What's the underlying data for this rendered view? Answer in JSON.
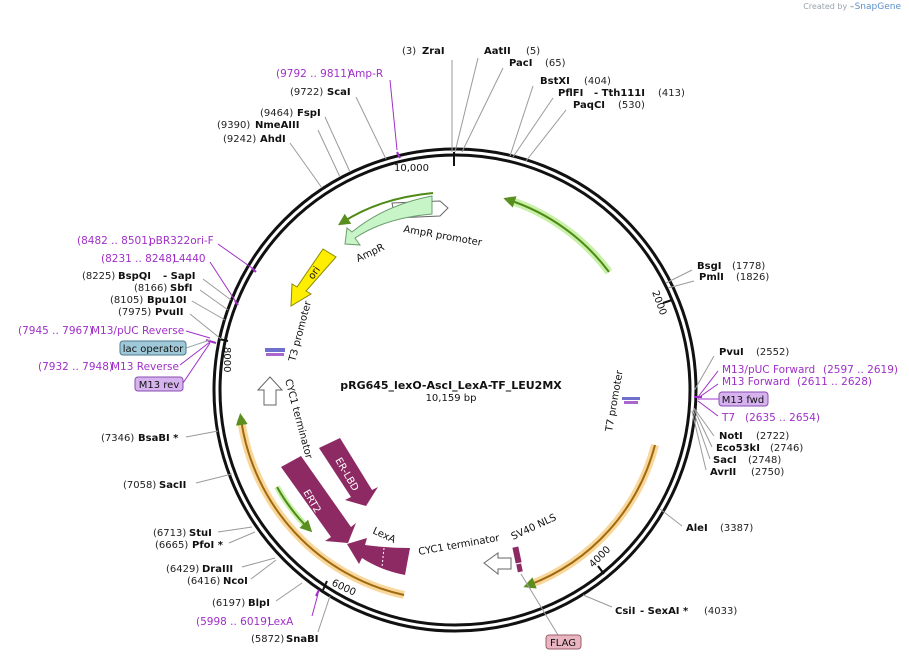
{
  "branding": {
    "created_by": "Created by",
    "product": "SnapGene"
  },
  "plasmid": {
    "name": "pRG645_lexO-AscI_LexA-TF_LEU2MX",
    "length_label": "10,159 bp",
    "length": 10159
  },
  "ticks": [
    "10,000",
    "2000",
    "4000",
    "6000",
    "8000"
  ],
  "sites": [
    {
      "name": "ZraI",
      "pos": "(3)"
    },
    {
      "name": "AatII",
      "pos": "(5)"
    },
    {
      "name": "PacI",
      "pos": "(65)"
    },
    {
      "name": "BstXI",
      "pos": "(404)"
    },
    {
      "name": "PflFI",
      "name2": "- Tth111I",
      "pos": "(413)"
    },
    {
      "name": "PaqCI",
      "pos": "(530)"
    },
    {
      "name": "BsgI",
      "pos": "(1778)"
    },
    {
      "name": "PmlI",
      "pos": "(1826)"
    },
    {
      "name": "PvuI",
      "pos": "(2552)"
    },
    {
      "name": "NotI",
      "pos": "(2722)"
    },
    {
      "name": "Eco53kI",
      "pos": "(2746)"
    },
    {
      "name": "SacI",
      "pos": "(2748)"
    },
    {
      "name": "AvrII",
      "pos": "(2750)"
    },
    {
      "name": "AleI",
      "pos": "(3387)"
    },
    {
      "name": "CsiI",
      "name2": "- SexAI *",
      "pos": "(4033)"
    },
    {
      "name": "SnaBI",
      "pos": "(5872)"
    },
    {
      "name": "BlpI",
      "pos": "(6197)"
    },
    {
      "name": "NcoI",
      "pos": "(6416)"
    },
    {
      "name": "DraIII",
      "pos": "(6429)"
    },
    {
      "name": "PfoI *",
      "pos": "(6665)"
    },
    {
      "name": "StuI",
      "pos": "(6713)"
    },
    {
      "name": "SacII",
      "pos": "(7058)"
    },
    {
      "name": "BsaBI *",
      "pos": "(7346)"
    },
    {
      "name": "PvuII",
      "pos": "(7975)"
    },
    {
      "name": "Bpu10I",
      "pos": "(8105)"
    },
    {
      "name": "SbfI",
      "pos": "(8166)"
    },
    {
      "name": "BspQI",
      "name2": "- SapI",
      "pos": "(8225)"
    },
    {
      "name": "AhdI",
      "pos": "(9242)"
    },
    {
      "name": "NmeAIII",
      "pos": "(9390)"
    },
    {
      "name": "FspI",
      "pos": "(9464)"
    },
    {
      "name": "ScaI",
      "pos": "(9722)"
    }
  ],
  "primers": [
    {
      "range": "(9792 .. 9811)",
      "name": "Amp-R"
    },
    {
      "range": "(8482 .. 8501)",
      "name": "pBR322ori-F"
    },
    {
      "range": "(8231 .. 8248)",
      "name": "L4440"
    },
    {
      "range": "(7945 .. 7967)",
      "name": "M13/pUC Reverse"
    },
    {
      "range": "(7932 .. 7948)",
      "name": "M13 Reverse"
    },
    {
      "range": "(2597 .. 2619)",
      "name": "M13/pUC Forward"
    },
    {
      "range": "(2611 .. 2628)",
      "name": "M13 Forward"
    },
    {
      "range": "(2635 .. 2654)",
      "name": "T7"
    },
    {
      "range": "(5998 .. 6019)",
      "name": "LexA"
    }
  ],
  "boxed_features": [
    {
      "name": "lac operator",
      "color": "#9fc9d8"
    },
    {
      "name": "M13 rev",
      "color": "#d6b3ef"
    },
    {
      "name": "M13 fwd",
      "color": "#d6b3ef"
    },
    {
      "name": "FLAG",
      "color": "#e8b5c0"
    }
  ],
  "inner_features": [
    {
      "name": "AmpR promoter"
    },
    {
      "name": "AmpR"
    },
    {
      "name": "ori"
    },
    {
      "name": "T3 promoter"
    },
    {
      "name": "CYC1 terminator"
    },
    {
      "name": "ER-LBD"
    },
    {
      "name": "ERT2"
    },
    {
      "name": "LexA"
    },
    {
      "name": "CYC1 terminator"
    },
    {
      "name": "SV40 NLS"
    },
    {
      "name": "T7 promoter"
    }
  ],
  "colors": {
    "backbone": "#111111",
    "enzyme_text": "#111111",
    "primer_text": "#a02fc8",
    "ampr": "#c8f5c8",
    "ori": "#ffee00",
    "lexa_tf": "#8e2a63",
    "orf_arc": "#f5c77a",
    "green_arc": "#b9ec90"
  }
}
